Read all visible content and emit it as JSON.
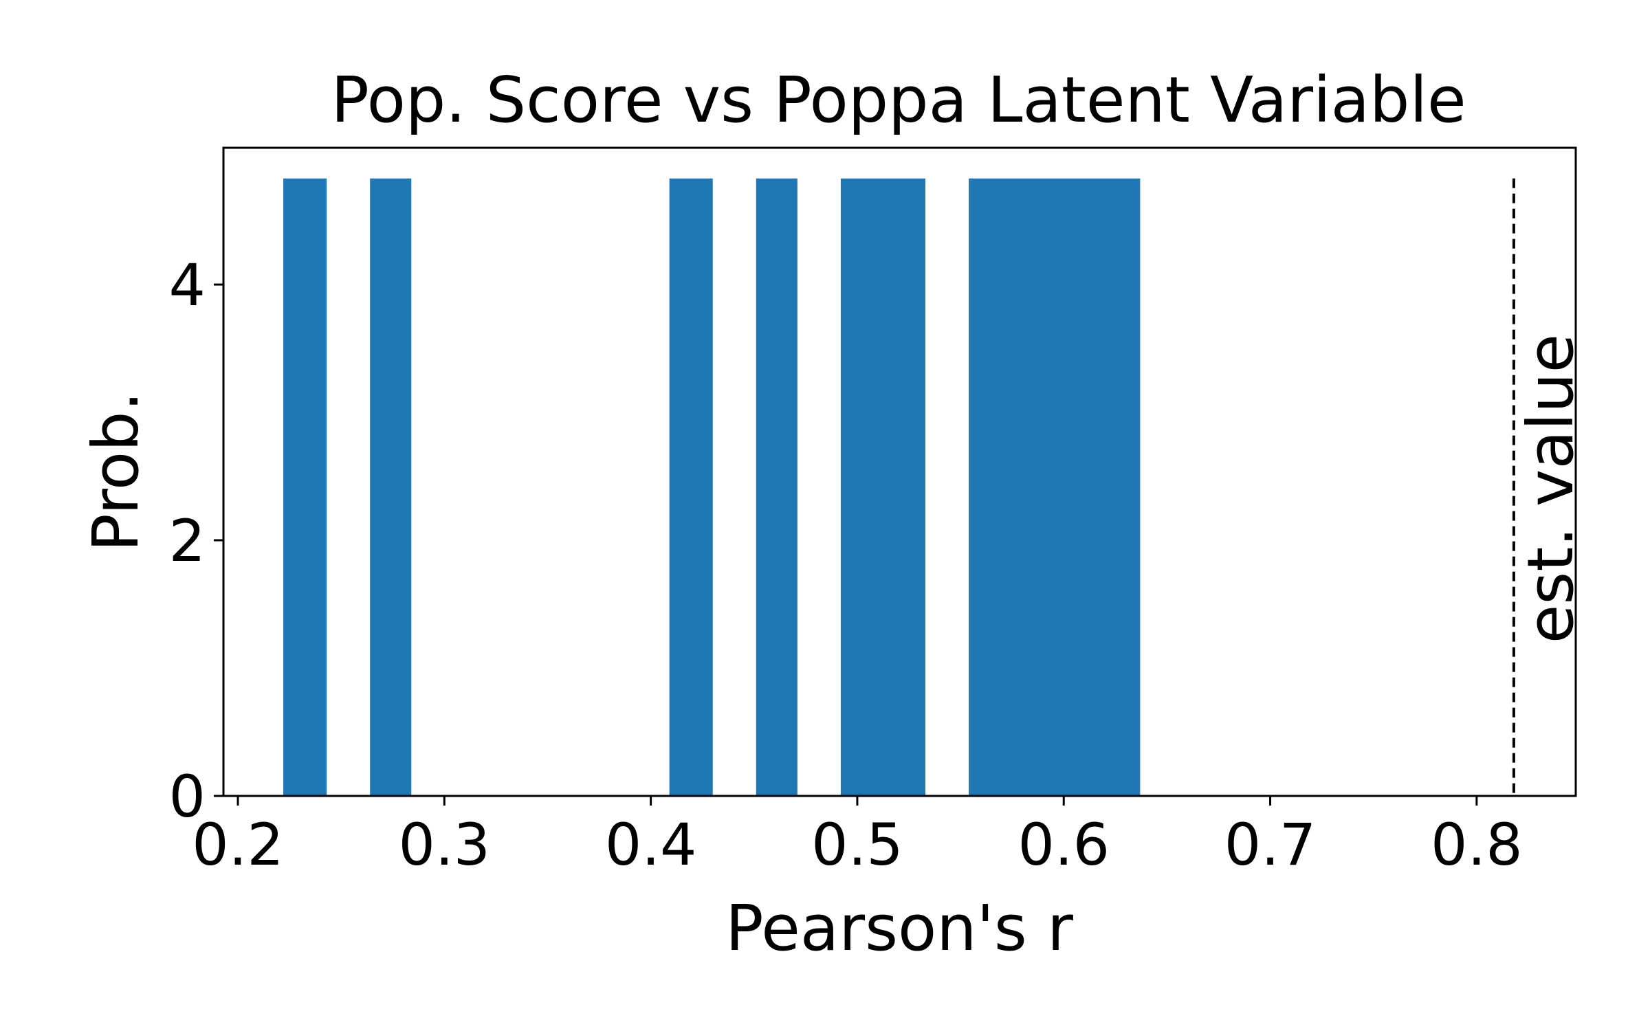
{
  "chart_data": {
    "type": "bar",
    "title": "Pop. Score vs Poppa Latent Variable",
    "xlabel": "Pearson's r",
    "ylabel": "Prob.",
    "xlim": [
      0.193,
      0.848
    ],
    "ylim": [
      0,
      5.07
    ],
    "grid": false,
    "xticks": [
      {
        "value": 0.2,
        "label": "0.2"
      },
      {
        "value": 0.3,
        "label": "0.3"
      },
      {
        "value": 0.4,
        "label": "0.4"
      },
      {
        "value": 0.5,
        "label": "0.5"
      },
      {
        "value": 0.6,
        "label": "0.6"
      },
      {
        "value": 0.7,
        "label": "0.7"
      },
      {
        "value": 0.8,
        "label": "0.8"
      }
    ],
    "yticks": [
      {
        "value": 0,
        "label": "0"
      },
      {
        "value": 2,
        "label": "2"
      },
      {
        "value": 4,
        "label": "4"
      }
    ],
    "bars": [
      {
        "x0": 0.222,
        "x1": 0.243,
        "value": 4.83
      },
      {
        "x0": 0.264,
        "x1": 0.284,
        "value": 4.83
      },
      {
        "x0": 0.409,
        "x1": 0.43,
        "value": 4.83
      },
      {
        "x0": 0.451,
        "x1": 0.471,
        "value": 4.83
      },
      {
        "x0": 0.492,
        "x1": 0.533,
        "value": 4.83
      },
      {
        "x0": 0.554,
        "x1": 0.637,
        "value": 4.83
      }
    ],
    "bar_color": "#1f77b4",
    "reference_line": {
      "x": 0.818,
      "y_max": 4.83,
      "label": "est. value",
      "style": "dashed",
      "color": "#000000"
    }
  }
}
